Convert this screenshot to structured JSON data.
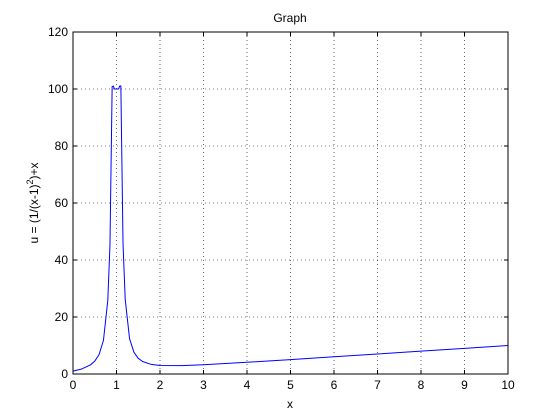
{
  "chart_data": {
    "type": "line",
    "title": "Graph",
    "xlabel": "x",
    "ylabel": "u = (1/(x-1)^2)+x",
    "xlim": [
      0,
      10
    ],
    "ylim": [
      0,
      120
    ],
    "grid": true,
    "x_ticks": [
      0,
      1,
      2,
      3,
      4,
      5,
      6,
      7,
      8,
      9,
      10
    ],
    "y_ticks": [
      0,
      20,
      40,
      60,
      80,
      100,
      120
    ],
    "series": [
      {
        "color": "#0000ff",
        "x": [
          0,
          0.2,
          0.4,
          0.5,
          0.6,
          0.7,
          0.8,
          0.85,
          0.9,
          0.93,
          0.95,
          1.05,
          1.07,
          1.1,
          1.15,
          1.2,
          1.3,
          1.4,
          1.5,
          1.6,
          1.8,
          2,
          2.5,
          3,
          4,
          5,
          6,
          7,
          8,
          9,
          10
        ],
        "y": [
          1,
          1.76,
          3.18,
          4.5,
          6.85,
          11.8,
          25.8,
          45.3,
          100.9,
          101,
          100,
          100,
          101,
          101.1,
          45.6,
          26.2,
          12.4,
          7.65,
          5.5,
          4.38,
          3.36,
          3,
          2.94,
          3.25,
          4.11,
          5.06,
          6.04,
          7.02,
          8.02,
          9.01,
          10.01
        ]
      }
    ]
  }
}
